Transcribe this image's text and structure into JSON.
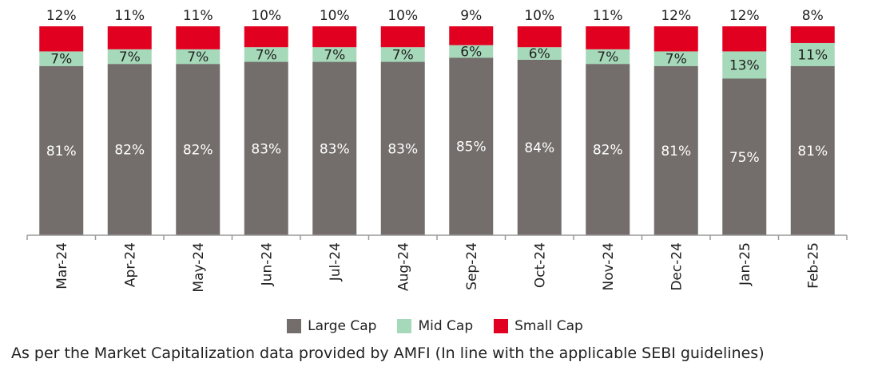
{
  "chart_data": {
    "type": "bar",
    "stacked": true,
    "categories": [
      "Mar-24",
      "Apr-24",
      "May-24",
      "Jun-24",
      "Jul-24",
      "Aug-24",
      "Sep-24",
      "Oct-24",
      "Nov-24",
      "Dec-24",
      "Jan-25",
      "Feb-25"
    ],
    "series": [
      {
        "name": "Large Cap",
        "color": "#736e6b",
        "values": [
          81,
          82,
          82,
          83,
          83,
          83,
          85,
          84,
          82,
          81,
          75,
          81
        ]
      },
      {
        "name": "Mid Cap",
        "color": "#a6d9b9",
        "values": [
          7,
          7,
          7,
          7,
          7,
          7,
          6,
          6,
          7,
          7,
          13,
          11
        ]
      },
      {
        "name": "Small Cap",
        "color": "#e1001f",
        "values": [
          12,
          11,
          11,
          10,
          10,
          10,
          9,
          10,
          11,
          12,
          12,
          8
        ]
      }
    ],
    "ylim": [
      0,
      100
    ],
    "grid": false,
    "legend_position": "bottom",
    "footnote": "As per the Market Capitalization data provided by AMFI (In line with the applicable SEBI guidelines)"
  }
}
